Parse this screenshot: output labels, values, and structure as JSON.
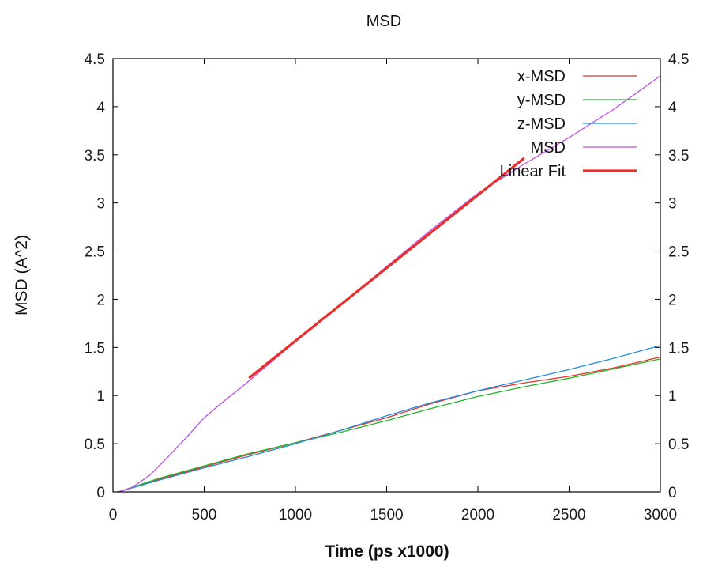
{
  "chart_data": {
    "type": "line",
    "title": "MSD",
    "xlabel": "Time (ps x1000)",
    "ylabel": "MSD (A^2)",
    "xlim": [
      0,
      3000
    ],
    "ylim": [
      0,
      4.5
    ],
    "x_ticks": [
      0,
      500,
      1000,
      1500,
      2000,
      2500,
      3000
    ],
    "x_tick_labels": [
      "0",
      "500",
      "1000",
      "1500",
      "2000",
      "2500",
      "3000"
    ],
    "y_ticks": [
      0,
      0.5,
      1,
      1.5,
      2,
      2.5,
      3,
      3.5,
      4,
      4.5
    ],
    "y_tick_labels": [
      "0",
      "0.5",
      "1",
      "1.5",
      "2",
      "2.5",
      "3",
      "3.5",
      "4",
      "4.5"
    ],
    "grid": false,
    "legend_position": "top-right",
    "series": [
      {
        "name": "x-MSD",
        "color": "#e8302a",
        "x": [
          30,
          250,
          500,
          750,
          1000,
          1250,
          1500,
          1750,
          2000,
          2250,
          2500,
          2750,
          3000
        ],
        "y": [
          0,
          0.13,
          0.26,
          0.39,
          0.51,
          0.64,
          0.77,
          0.92,
          1.05,
          1.13,
          1.2,
          1.29,
          1.4
        ]
      },
      {
        "name": "y-MSD",
        "color": "#22b52a",
        "x": [
          30,
          250,
          500,
          750,
          1000,
          1250,
          1500,
          1750,
          2000,
          2250,
          2500,
          2750,
          3000
        ],
        "y": [
          0,
          0.14,
          0.27,
          0.4,
          0.51,
          0.62,
          0.74,
          0.87,
          0.99,
          1.09,
          1.18,
          1.28,
          1.38
        ]
      },
      {
        "name": "z-MSD",
        "color": "#1e8fdd",
        "x": [
          30,
          250,
          500,
          750,
          1000,
          1250,
          1500,
          1750,
          2000,
          2250,
          2500,
          2750,
          3000
        ],
        "y": [
          0,
          0.12,
          0.25,
          0.37,
          0.5,
          0.64,
          0.79,
          0.93,
          1.05,
          1.16,
          1.27,
          1.39,
          1.52
        ]
      },
      {
        "name": "MSD",
        "color": "#c04ee8",
        "x": [
          30,
          100,
          200,
          300,
          400,
          500,
          600,
          700,
          750,
          1000,
          1250,
          1500,
          1750,
          2000,
          2250,
          2500,
          2750,
          3000
        ],
        "y": [
          0,
          0.04,
          0.17,
          0.36,
          0.56,
          0.77,
          0.93,
          1.08,
          1.16,
          1.56,
          1.95,
          2.34,
          2.73,
          3.1,
          3.4,
          3.68,
          3.98,
          4.32
        ]
      },
      {
        "name": "Linear Fit",
        "color": "#e8302a",
        "line_width": "thick",
        "x": [
          750,
          2250
        ],
        "y": [
          1.19,
          3.46
        ]
      }
    ]
  }
}
